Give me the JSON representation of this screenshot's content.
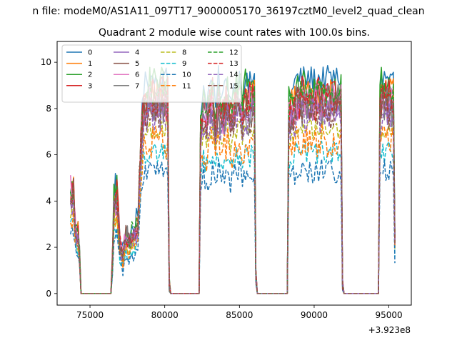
{
  "chart_data": {
    "type": "line",
    "suptitle": "n file: modeM0/AS1A11_097T17_9000005170_36197cztM0_level2_quad_clean",
    "title": "Quadrant 2 module wise count rates with 100.0s bins.",
    "xlabel": "",
    "ylabel": "",
    "offset_label": "+3.923e8",
    "xlim": [
      72800,
      96500
    ],
    "ylim": [
      -0.5,
      10.9
    ],
    "xticks": [
      75000,
      80000,
      85000,
      90000,
      95000
    ],
    "xtick_labels": [
      "75000",
      "80000",
      "85000",
      "90000",
      "95000"
    ],
    "yticks": [
      0,
      2,
      4,
      6,
      8,
      10
    ],
    "ytick_labels": [
      "0",
      "2",
      "4",
      "6",
      "8",
      "10"
    ],
    "legend_position": "upper-left",
    "legend_columns": 4,
    "series": [
      {
        "name": "0",
        "color": "#1f77b4",
        "style": "solid",
        "level": 9.3
      },
      {
        "name": "1",
        "color": "#ff7f0e",
        "style": "solid",
        "level": 8.6
      },
      {
        "name": "2",
        "color": "#2ca02c",
        "style": "solid",
        "level": 8.9
      },
      {
        "name": "3",
        "color": "#d62728",
        "style": "solid",
        "level": 8.4
      },
      {
        "name": "4",
        "color": "#9467bd",
        "style": "solid",
        "level": 7.9
      },
      {
        "name": "5",
        "color": "#8c564b",
        "style": "solid",
        "level": 8.2
      },
      {
        "name": "6",
        "color": "#e377c2",
        "style": "solid",
        "level": 8.3
      },
      {
        "name": "7",
        "color": "#7f7f7f",
        "style": "solid",
        "level": 8.1
      },
      {
        "name": "8",
        "color": "#bcbd22",
        "style": "dashed",
        "level": 7.1
      },
      {
        "name": "9",
        "color": "#17becf",
        "style": "dashed",
        "level": 6.1
      },
      {
        "name": "10",
        "color": "#1f77b4",
        "style": "dashed",
        "level": 5.3
      },
      {
        "name": "11",
        "color": "#ff7f0e",
        "style": "dashed",
        "level": 6.6
      },
      {
        "name": "12",
        "color": "#2ca02c",
        "style": "dashed",
        "level": 8.7
      },
      {
        "name": "13",
        "color": "#d62728",
        "style": "dashed",
        "level": 8.3
      },
      {
        "name": "14",
        "color": "#9467bd",
        "style": "dashed",
        "level": 7.7
      },
      {
        "name": "15",
        "color": "#8c564b",
        "style": "dashed",
        "level": 8.0
      }
    ],
    "envelope": {
      "x": [
        73700,
        73900,
        74050,
        74200,
        74300,
        74400,
        76400,
        76500,
        76600,
        76800,
        77000,
        77200,
        77400,
        77600,
        77800,
        78000,
        78200,
        78400,
        78600,
        78800,
        79000,
        79200,
        79400,
        79600,
        79800,
        80100,
        80200,
        80300,
        80400,
        82300,
        82400,
        82600,
        82800,
        83000,
        83200,
        83400,
        83600,
        83800,
        84000,
        84200,
        84400,
        84600,
        84800,
        85000,
        85200,
        85400,
        85600,
        85800,
        86000,
        86100,
        86200,
        88200,
        88250,
        88400,
        88600,
        88800,
        89000,
        89200,
        89400,
        89600,
        89800,
        90000,
        90200,
        90400,
        90600,
        90800,
        91000,
        91200,
        91400,
        91600,
        91800,
        91900,
        92000,
        94300,
        94400,
        94500,
        94700,
        94900,
        95100,
        95300,
        95350,
        95450
      ],
      "scale": [
        0.5,
        0.5,
        0.3,
        0.3,
        0.2,
        0.0,
        0.0,
        0.15,
        0.45,
        0.5,
        0.25,
        0.2,
        0.3,
        0.25,
        0.3,
        0.3,
        0.35,
        0.75,
        0.95,
        1.0,
        1.0,
        1.0,
        1.0,
        1.0,
        1.0,
        1.0,
        1.0,
        0.05,
        0.0,
        0.0,
        0.85,
        0.95,
        0.9,
        0.95,
        1.0,
        0.85,
        1.0,
        0.9,
        0.95,
        1.0,
        0.9,
        0.95,
        1.0,
        1.0,
        0.95,
        1.0,
        0.95,
        1.0,
        1.0,
        0.1,
        0.0,
        0.0,
        0.9,
        0.95,
        0.95,
        1.0,
        1.0,
        1.0,
        1.0,
        1.0,
        1.0,
        1.0,
        1.0,
        1.0,
        1.0,
        1.0,
        1.0,
        1.0,
        1.0,
        1.0,
        1.0,
        0.05,
        0.0,
        0.0,
        0.95,
        1.0,
        1.0,
        1.0,
        1.0,
        1.0,
        0.3,
        0.25
      ]
    }
  }
}
